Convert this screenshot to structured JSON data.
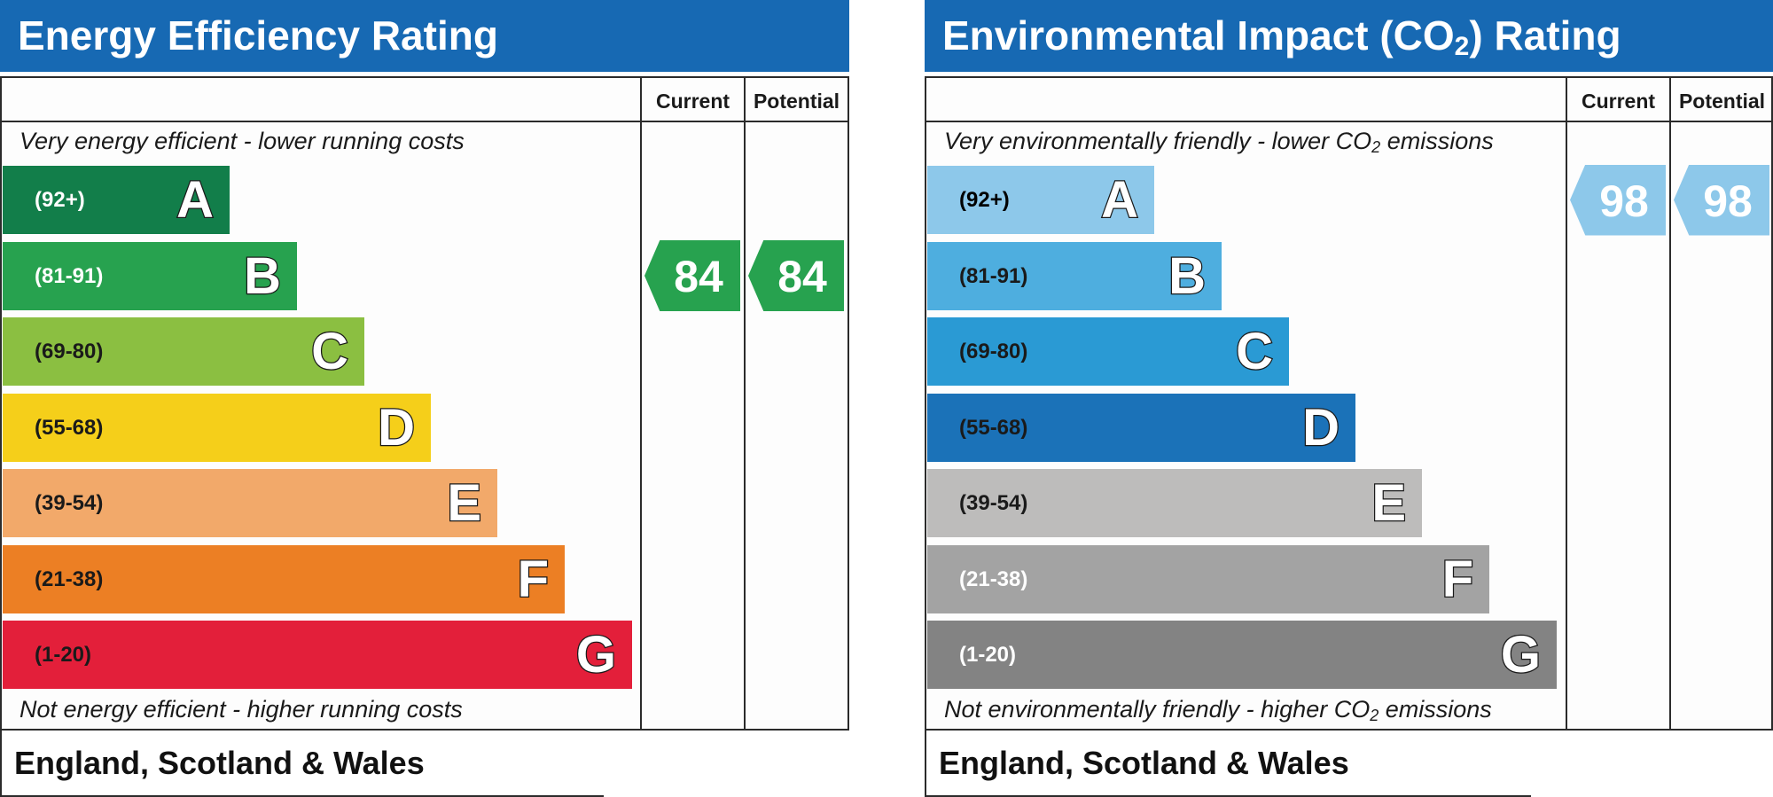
{
  "charts": [
    {
      "title": "Energy Efficiency Rating",
      "col_current": "Current",
      "col_potential": "Potential",
      "top_note": "Very energy efficient - lower running costs",
      "bottom_note": "Not energy efficient - higher running costs",
      "footer": "England, Scotland & Wales"
    },
    {
      "title_main": "Environmental Impact (CO",
      "title_sub": "2",
      "title_end": ") Rating",
      "col_current": "Current",
      "col_potential": "Potential",
      "top_note_main": "Very environmentally friendly - lower CO",
      "top_note_sub": "2",
      "top_note_end": " emissions",
      "bottom_note_main": "Not environmentally friendly - higher CO",
      "bottom_note_sub": "2",
      "bottom_note_end": " emissions",
      "footer": "England, Scotland & Wales"
    }
  ],
  "chart_data": [
    {
      "type": "bar",
      "title": "Energy Efficiency Rating",
      "categories": [
        "A",
        "B",
        "C",
        "D",
        "E",
        "F",
        "G"
      ],
      "ranges": [
        "(92+)",
        "(81-91)",
        "(69-80)",
        "(55-68)",
        "(39-54)",
        "(21-38)",
        "(1-20)"
      ],
      "band_colors": [
        "#127e4a",
        "#27a24f",
        "#8bbf41",
        "#f5cf1a",
        "#f2a96a",
        "#ec7f24",
        "#e31f3a"
      ],
      "range_text_colors": [
        "#ffffff",
        "#ffffff",
        "#1a1a1a",
        "#1a1a1a",
        "#1a1a1a",
        "#1a1a1a",
        "#1a1a1a"
      ],
      "current": 84,
      "potential": 84,
      "current_band": "B",
      "potential_band": "B",
      "indicator_color": "#27a24f"
    },
    {
      "type": "bar",
      "title": "Environmental Impact (CO2) Rating",
      "categories": [
        "A",
        "B",
        "C",
        "D",
        "E",
        "F",
        "G"
      ],
      "ranges": [
        "(92+)",
        "(81-91)",
        "(69-80)",
        "(55-68)",
        "(39-54)",
        "(21-38)",
        "(1-20)"
      ],
      "band_colors": [
        "#8dc8ea",
        "#4eaedf",
        "#2a9ad4",
        "#1b72b8",
        "#bdbcbb",
        "#a3a3a3",
        "#838383"
      ],
      "range_text_colors": [
        "#000000",
        "#1a1a1a",
        "#1a1a1a",
        "#1a1a1a",
        "#1a1a1a",
        "#ffffff",
        "#ffffff"
      ],
      "current": 98,
      "potential": 98,
      "current_band": "A",
      "potential_band": "A",
      "indicator_color": "#8dc8ea"
    }
  ]
}
